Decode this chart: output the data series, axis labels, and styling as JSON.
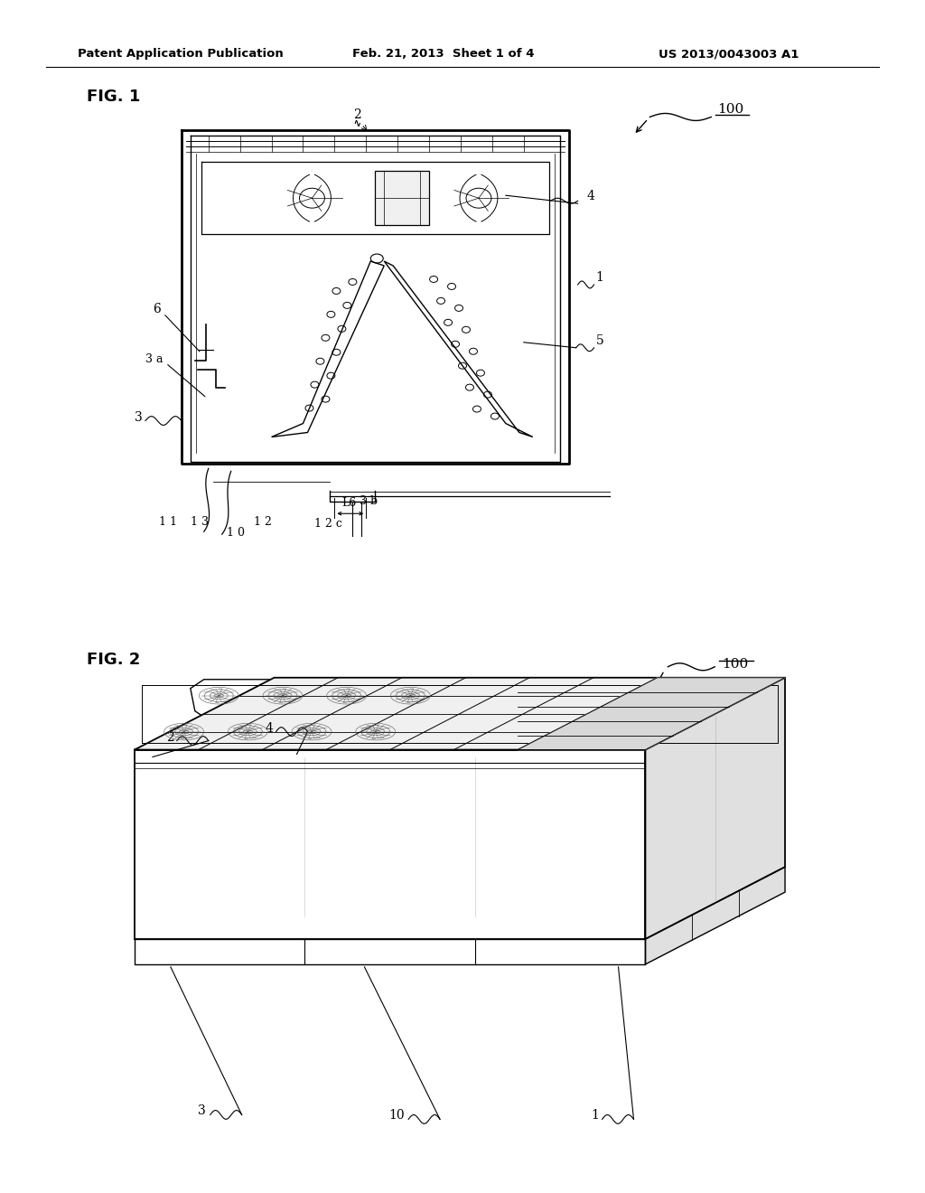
{
  "background_color": "#ffffff",
  "page_width": 10.24,
  "page_height": 13.2,
  "header_text": "Patent Application Publication",
  "header_date": "Feb. 21, 2013  Sheet 1 of 4",
  "header_patent": "US 2013/0043003 A1",
  "fig1_label": "FIG. 1",
  "fig2_label": "FIG. 2",
  "text_color": "#000000",
  "line_color": "#000000",
  "gray_light": "#cccccc",
  "gray_medium": "#999999"
}
